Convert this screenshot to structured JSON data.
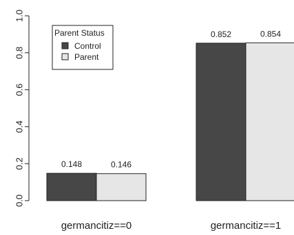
{
  "chart_data": {
    "type": "bar",
    "categories": [
      "germancitiz==0",
      "germancitiz==1"
    ],
    "series": [
      {
        "name": "Control",
        "values": [
          0.148,
          0.852
        ],
        "color": "#474747"
      },
      {
        "name": "Parent",
        "values": [
          0.146,
          0.854
        ],
        "color": "#e6e6e6"
      }
    ],
    "data_labels": [
      [
        "0.148",
        "0.852"
      ],
      [
        "0.146",
        "0.854"
      ]
    ],
    "ylim": [
      0,
      1
    ],
    "yticks": [
      0.0,
      0.2,
      0.4,
      0.6,
      0.8,
      1.0
    ],
    "ytick_labels": [
      "0.0",
      "0.2",
      "0.4",
      "0.6",
      "0.8",
      "1.0"
    ],
    "legend": {
      "title": "Parent Status",
      "entries": [
        "Control",
        "Parent"
      ],
      "position": "top-left"
    },
    "grid": false
  }
}
